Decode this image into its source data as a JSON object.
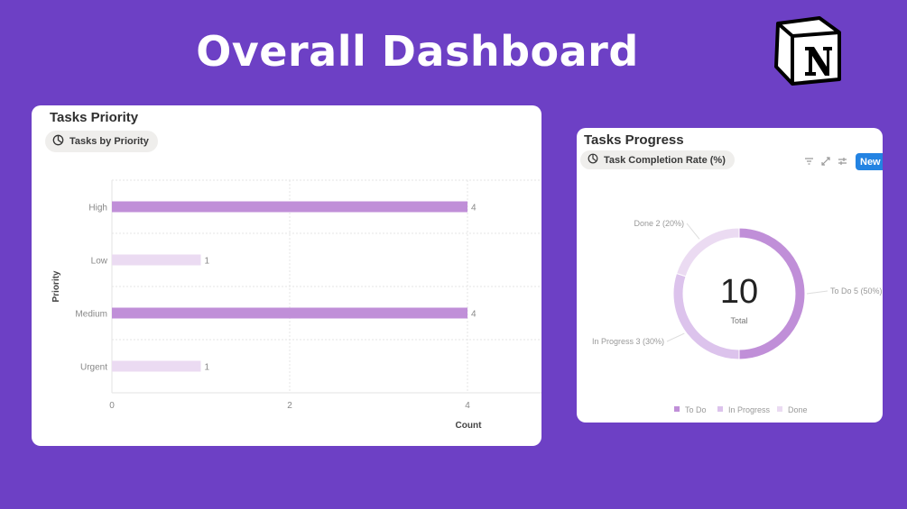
{
  "page_title": "Overall Dashboard",
  "logo_letter": "N",
  "cards": {
    "priority": {
      "title": "Tasks Priority",
      "view_label": "Tasks by Priority"
    },
    "progress": {
      "title": "Tasks Progress",
      "view_label": "Task Completion Rate (%)",
      "new_label": "New"
    }
  },
  "chart_data": [
    {
      "type": "bar",
      "orientation": "horizontal",
      "categories": [
        "High",
        "Low",
        "Medium",
        "Urgent"
      ],
      "values": [
        4,
        1,
        4,
        1
      ],
      "value_labels": [
        "4",
        "1",
        "4",
        "1"
      ],
      "colors": [
        "#c08fd8",
        "#ebdbf2",
        "#c08fd8",
        "#ebdbf2"
      ],
      "xlabel": "Count",
      "ylabel": "Priority",
      "xticks": [
        0,
        2,
        4
      ],
      "xlim": [
        0,
        4.85
      ],
      "grid": true
    },
    {
      "type": "pie",
      "donut": true,
      "labels": [
        "To Do",
        "In Progress",
        "Done"
      ],
      "values": [
        5,
        3,
        2
      ],
      "percent": [
        50,
        30,
        20
      ],
      "slice_labels": [
        "To Do 5 (50%)",
        "In Progress 3 (30%)",
        "Done 2 (20%)"
      ],
      "colors": [
        "#c08fd8",
        "#dcc3ec",
        "#ebdbf2"
      ],
      "center_value": "10",
      "center_label": "Total",
      "legend": "bottom"
    }
  ]
}
